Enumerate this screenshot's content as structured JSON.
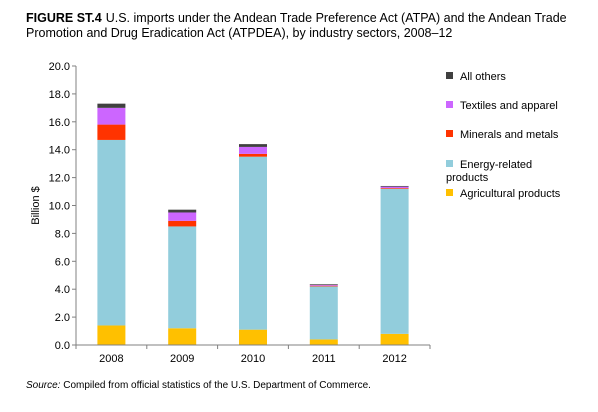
{
  "figure": {
    "label": "FIGURE ST.4",
    "title": "U.S. imports under the Andean Trade Preference Act (ATPA) and the Andean Trade Promotion and Drug Eradication Act (ATPDEA), by industry sectors, 2008–12"
  },
  "source": {
    "label": "Source:",
    "text": "Compiled from official statistics of the U.S. Department of Commerce."
  },
  "chart_data": {
    "type": "bar",
    "stacked": true,
    "categories": [
      "2008",
      "2009",
      "2010",
      "2011",
      "2012"
    ],
    "ylabel": "Billion $",
    "xlabel": "",
    "ylim": [
      0,
      20
    ],
    "yticks": [
      "0.0",
      "2.0",
      "4.0",
      "6.0",
      "8.0",
      "10.0",
      "12.0",
      "14.0",
      "16.0",
      "18.0",
      "20.0"
    ],
    "grid": false,
    "legend_position": "right",
    "series": [
      {
        "name": "Agricultural products",
        "color": "#FFC000",
        "values": [
          1.4,
          1.2,
          1.1,
          0.4,
          0.8
        ]
      },
      {
        "name": "Energy-related products",
        "color": "#92CDDC",
        "values": [
          13.3,
          7.3,
          12.4,
          3.8,
          10.4
        ]
      },
      {
        "name": "Minerals and metals",
        "color": "#FF3300",
        "values": [
          1.1,
          0.4,
          0.2,
          0.05,
          0.05
        ]
      },
      {
        "name": "Textiles and apparel",
        "color": "#CC66FF",
        "values": [
          1.2,
          0.6,
          0.5,
          0.05,
          0.1
        ]
      },
      {
        "name": "All others",
        "color": "#404040",
        "values": [
          0.3,
          0.2,
          0.2,
          0.05,
          0.05
        ]
      }
    ]
  }
}
